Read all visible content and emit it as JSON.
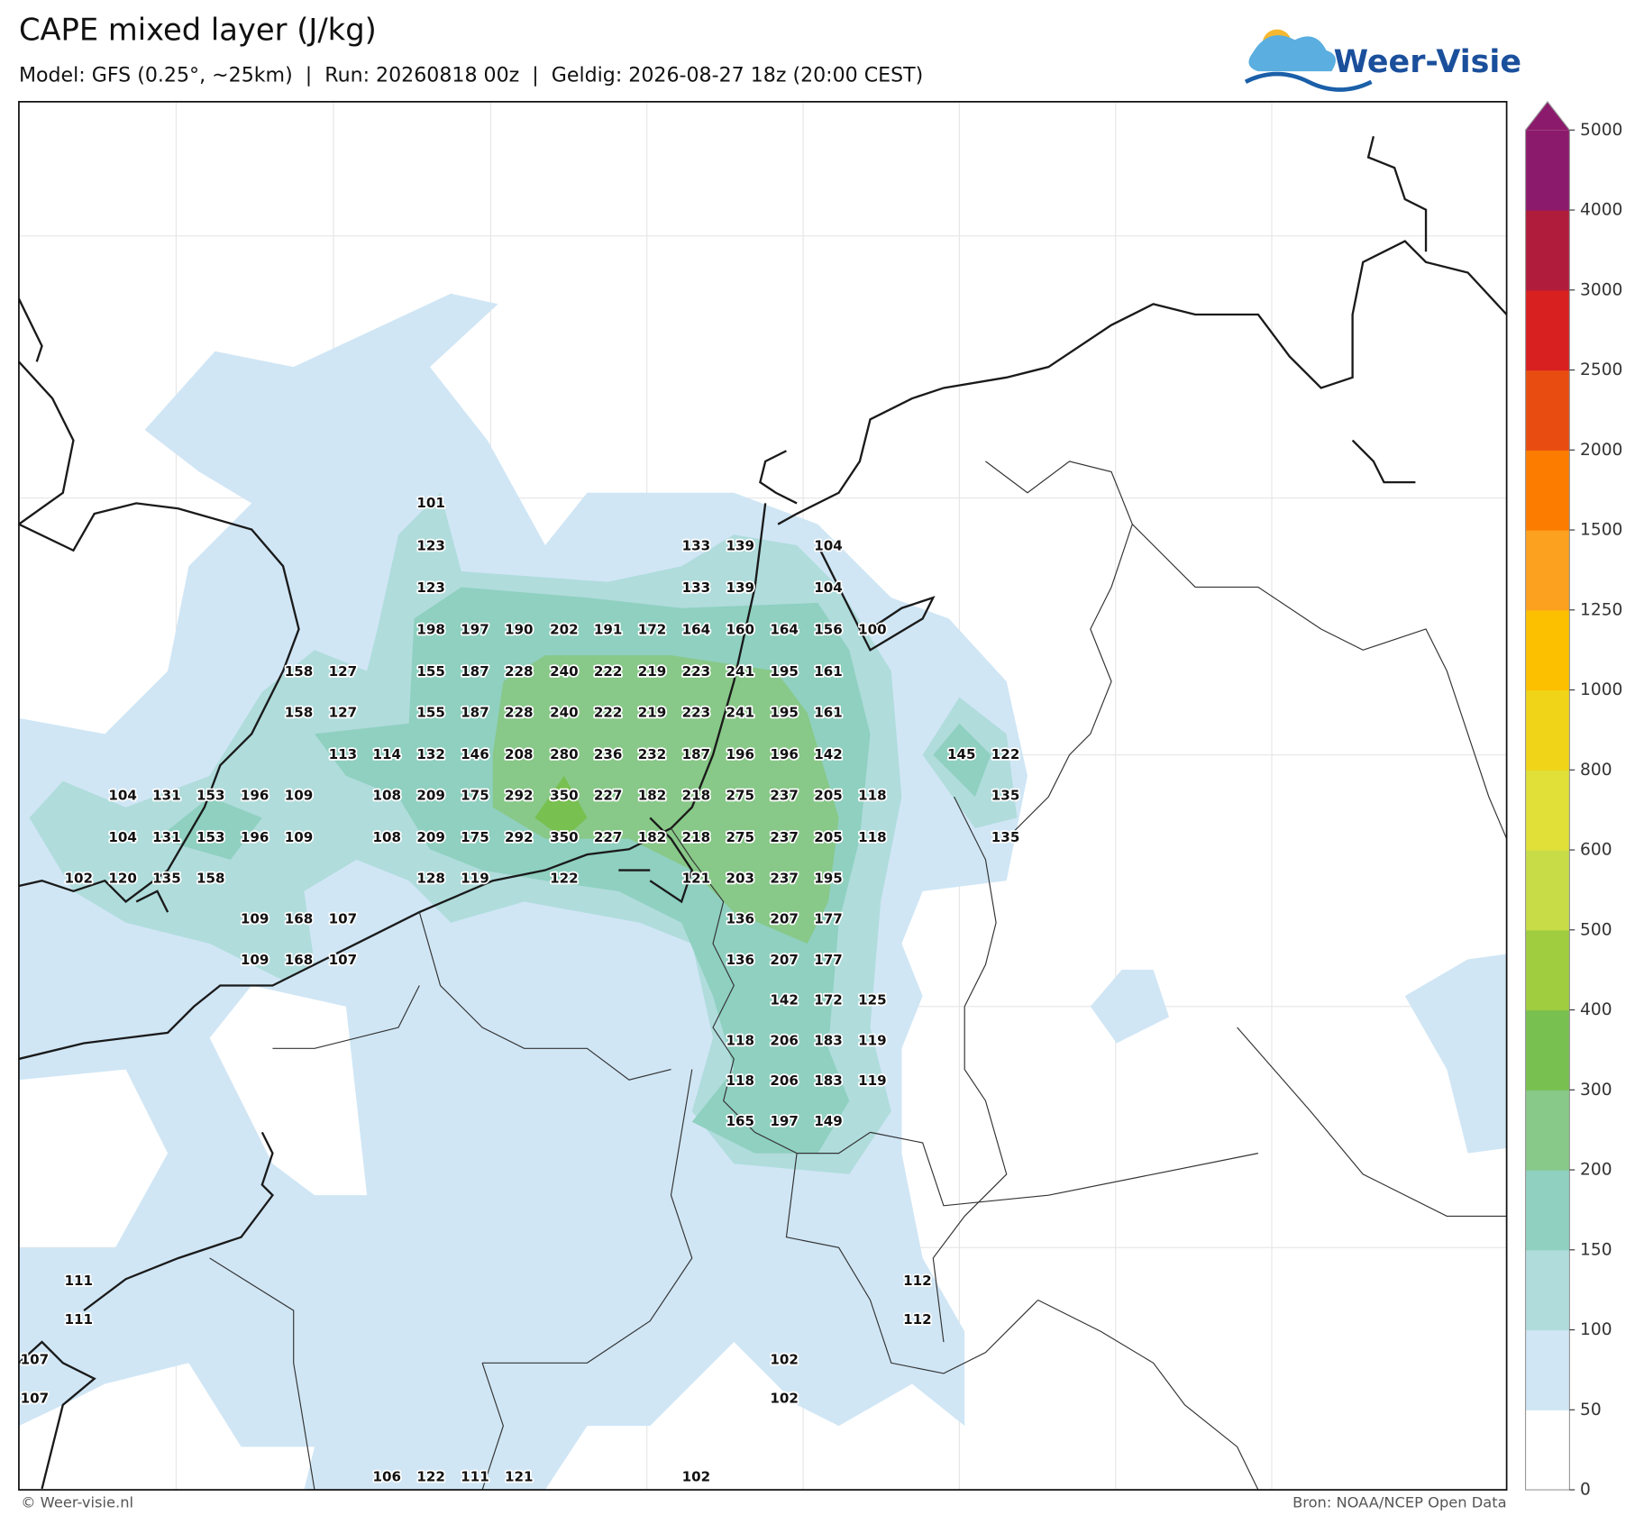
{
  "title": "CAPE mixed layer (J/kg)",
  "subtitle": "Model: GFS (0.25°, ~25km)  |  Run: 20260818 00z  |  Geldig: 2026-08-27 18z (20:00 CEST)",
  "logo": "Weer-Visie",
  "footer_left": "© Weer-visie.nl",
  "footer_right": "Bron: NOAA/NCEP Open Data",
  "colorbar": {
    "ticks": [
      0,
      50,
      100,
      150,
      200,
      300,
      400,
      500,
      600,
      800,
      1000,
      1250,
      1500,
      2000,
      2500,
      3000,
      4000,
      5000
    ],
    "colors": [
      "#ffffff",
      "#d0e6f5",
      "#b0dcdc",
      "#8fd0c0",
      "#88c888",
      "#78c050",
      "#a0cc40",
      "#c8dc48",
      "#e0e038",
      "#f0d418",
      "#fcc000",
      "#fca020",
      "#fc7c00",
      "#e84c10",
      "#d82020",
      "#b01c3c",
      "#8c1a6c"
    ],
    "extend_color": "#8c1a6c"
  },
  "labels": [
    101,
    123,
    133,
    139,
    104,
    123,
    133,
    139,
    104,
    198,
    197,
    190,
    202,
    191,
    172,
    164,
    160,
    164,
    156,
    100,
    158,
    127,
    155,
    187,
    228,
    240,
    222,
    219,
    223,
    241,
    195,
    161,
    158,
    127,
    155,
    187,
    228,
    240,
    222,
    219,
    223,
    241,
    195,
    161,
    113,
    114,
    132,
    146,
    208,
    280,
    236,
    232,
    187,
    196,
    196,
    142,
    145,
    122,
    104,
    131,
    153,
    196,
    109,
    108,
    209,
    175,
    292,
    350,
    227,
    182,
    218,
    275,
    237,
    205,
    118,
    135,
    104,
    131,
    153,
    196,
    109,
    108,
    209,
    175,
    292,
    350,
    227,
    182,
    218,
    275,
    237,
    205,
    118,
    135,
    102,
    120,
    135,
    158,
    128,
    119,
    122,
    121,
    203,
    237,
    195,
    109,
    168,
    107,
    136,
    207,
    177,
    109,
    168,
    107,
    136,
    207,
    177,
    142,
    172,
    125,
    118,
    206,
    183,
    119,
    118,
    206,
    183,
    119,
    165,
    197,
    149,
    111,
    112,
    111,
    112,
    107,
    102,
    107,
    102,
    106,
    122,
    111,
    121,
    102
  ]
}
